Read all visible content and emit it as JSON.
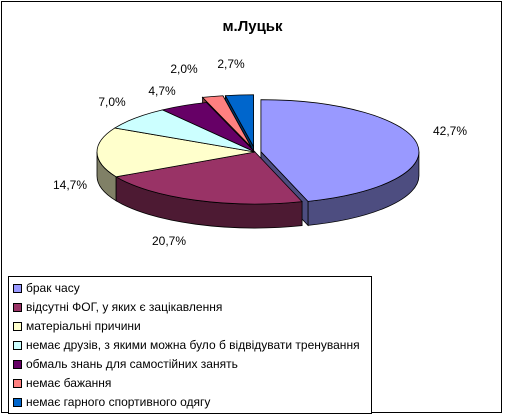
{
  "chart_data": {
    "type": "pie",
    "title": "м.Луцьк",
    "three_d": true,
    "legend_position": "bottom-left",
    "slices": [
      {
        "name": "брак часу",
        "value": 42.7,
        "label": "42,7%",
        "color": "#9999ff",
        "side_color": "#4d4d80"
      },
      {
        "name": "відсутні ФОГ, у яких є зацікавлення",
        "value": 20.7,
        "label": "20,7%",
        "color": "#993366",
        "side_color": "#4d1a33"
      },
      {
        "name": "матеріальні причини",
        "value": 14.7,
        "label": "14,7%",
        "color": "#ffffcc",
        "side_color": "#808066"
      },
      {
        "name": "немає друзів, з якими можна було б відвідувати тренування",
        "value": 7.0,
        "label": "7,0%",
        "color": "#ccffff",
        "side_color": "#668080"
      },
      {
        "name": "обмаль знань для самостійних занять",
        "value": 4.7,
        "label": "4,7%",
        "color": "#660066",
        "side_color": "#330033"
      },
      {
        "name": "немає бажання",
        "value": 2.0,
        "label": "2,0%",
        "color": "#ff8080",
        "side_color": "#804040"
      },
      {
        "name": "немає гарного спортивного одягу",
        "value": 2.7,
        "label": "2,7%",
        "color": "#0066cc",
        "side_color": "#003366"
      }
    ]
  }
}
